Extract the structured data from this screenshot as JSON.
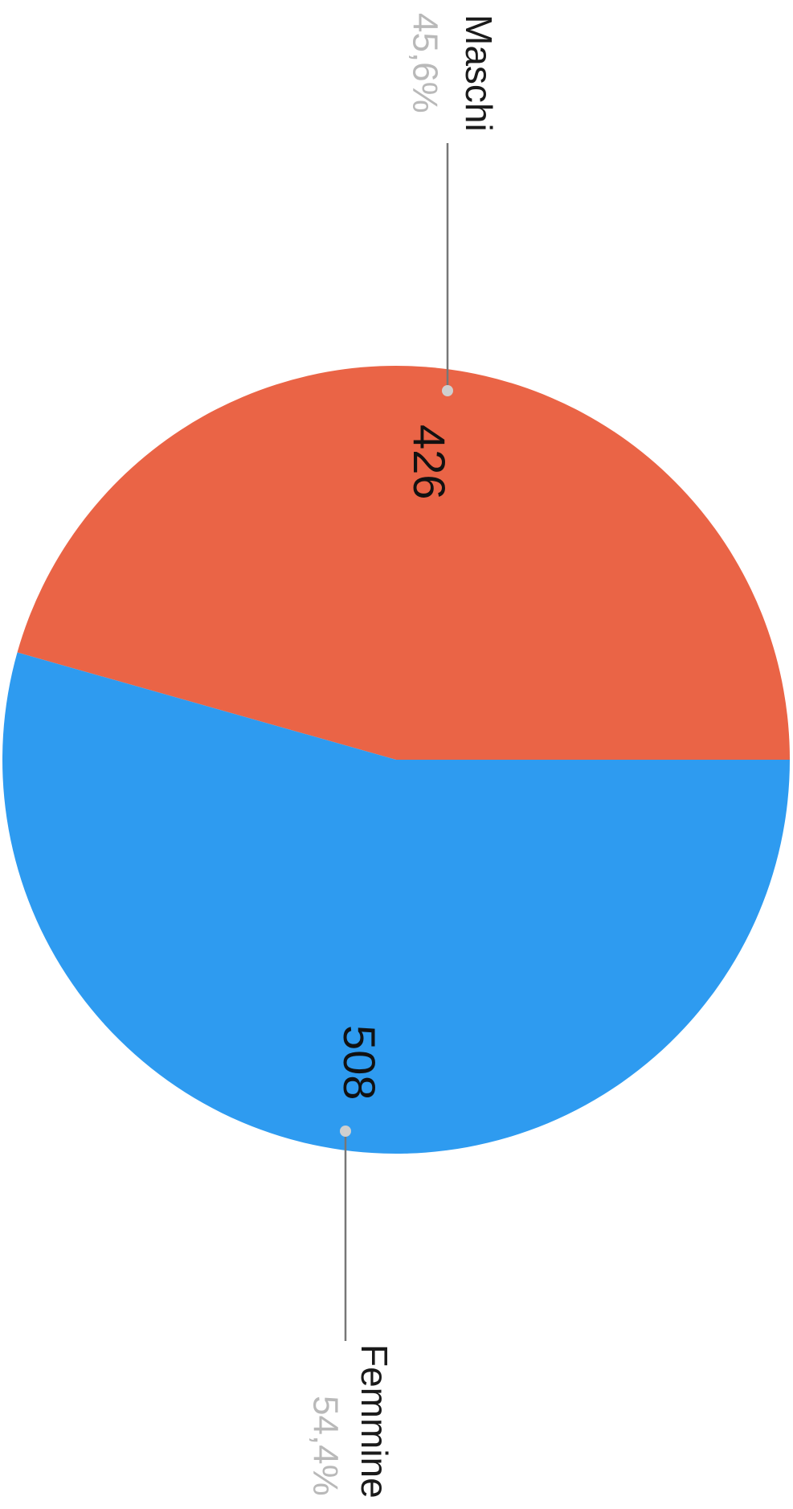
{
  "chart_data": {
    "type": "pie",
    "orientation": "rotated 90 degrees clockwise",
    "slices": [
      {
        "name": "Maschi",
        "value": 426,
        "value_label": "426",
        "percent": 45.6,
        "percent_label": "45,6%",
        "color": "#EA6446"
      },
      {
        "name": "Femmine",
        "value": 508,
        "value_label": "508",
        "percent": 54.4,
        "percent_label": "54,4%",
        "color": "#2E9BF0"
      }
    ]
  }
}
